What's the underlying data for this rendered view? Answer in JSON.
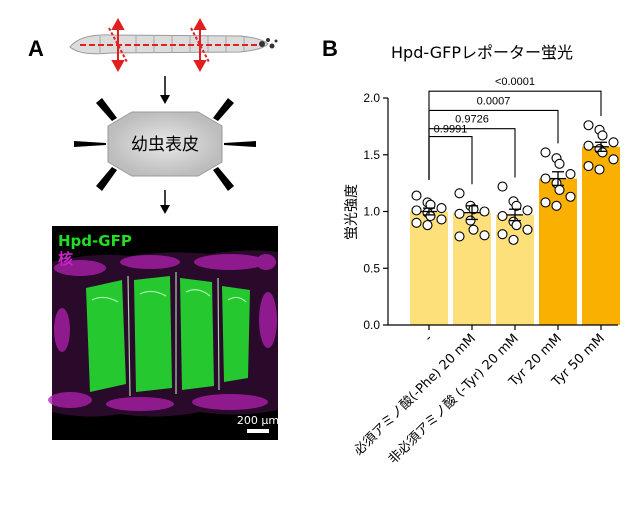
{
  "panel_a": {
    "label": "A",
    "cuticle_label": "幼虫表皮",
    "reporter_label": "Hpd-GFP",
    "nuclei_label": "核",
    "scale_bar": "200 µm",
    "colors": {
      "gfp": "#22dd22",
      "nuclei": "#cc22cc",
      "arrow": "#e02020"
    }
  },
  "panel_b": {
    "label": "B"
  },
  "chart_data": {
    "type": "bar",
    "title": "Hpd-GFPレポーター蛍光",
    "ylabel": "蛍光強度",
    "xlabel": "",
    "ylim": [
      0,
      2.0
    ],
    "yticks": [
      "0.0",
      "0.5",
      "1.0",
      "1.5",
      "2.0"
    ],
    "categories": [
      "-",
      "必須アミノ酸(-Phe) 20 mM",
      "非必須アミノ酸 (-Tyr) 20 mM",
      "Tyr 20 mM",
      "Tyr 50 mM"
    ],
    "values": [
      1.0,
      0.99,
      0.97,
      1.29,
      1.57
    ],
    "sem": [
      0.03,
      0.06,
      0.05,
      0.06,
      0.04
    ],
    "bar_colors": [
      "#fde07a",
      "#fde07a",
      "#fde07a",
      "#f9b000",
      "#f9b000"
    ],
    "points": [
      [
        1.14,
        1.08,
        1.06,
        1.03,
        1.01,
        0.99,
        0.96,
        0.93,
        0.9,
        0.88
      ],
      [
        1.16,
        1.05,
        1.02,
        1.0,
        0.98,
        0.92,
        0.84,
        0.79,
        0.78
      ],
      [
        1.22,
        1.09,
        1.05,
        1.01,
        0.96,
        0.91,
        0.88,
        0.84,
        0.8,
        0.75
      ],
      [
        1.52,
        1.47,
        1.42,
        1.33,
        1.29,
        1.25,
        1.19,
        1.13,
        1.08,
        1.05
      ],
      [
        1.76,
        1.72,
        1.67,
        1.61,
        1.58,
        1.55,
        1.52,
        1.46,
        1.4,
        1.37
      ]
    ],
    "comparisons": [
      {
        "from": 0,
        "to": 1,
        "p": "0.9991"
      },
      {
        "from": 0,
        "to": 2,
        "p": "0.9726"
      },
      {
        "from": 0,
        "to": 3,
        "p": "0.0007"
      },
      {
        "from": 0,
        "to": 4,
        "p": "<0.0001"
      }
    ],
    "grid": false
  }
}
